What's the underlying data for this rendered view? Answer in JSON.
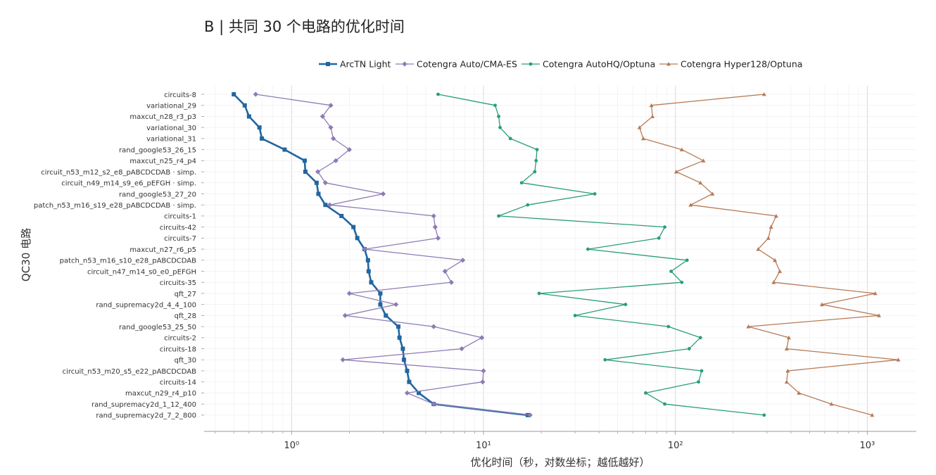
{
  "title": "B | 共同 30 个电路的优化时间",
  "chart_data": {
    "type": "line",
    "xlabel": "优化时间（秒，对数坐标；越低越好）",
    "ylabel": "QC30 电路",
    "x_scale": "log",
    "xlim": [
      0.35,
      1800
    ],
    "x_ticks": [
      1,
      10,
      100,
      1000
    ],
    "x_tick_labels": [
      "10⁰",
      "10¹",
      "10²",
      "10³"
    ],
    "grid": true,
    "legend_position": "top-center",
    "categories": [
      "circuits-8",
      "variational_29",
      "maxcut_n28_r3_p3",
      "variational_30",
      "variational_31",
      "rand_google53_26_15",
      "maxcut_n25_r4_p4",
      "circuit_n53_m12_s2_e8_pABCDCDAB · simp.",
      "circuit_n49_m14_s9_e6_pEFGH · simp.",
      "rand_google53_27_20",
      "patch_n53_m16_s19_e28_pABCDCDAB · simp.",
      "circuits-1",
      "circuits-42",
      "circuits-7",
      "maxcut_n27_r6_p5",
      "patch_n53_m16_s10_e28_pABCDCDAB",
      "circuit_n47_m14_s0_e0_pEFGH",
      "circuits-35",
      "qft_27",
      "rand_supremacy2d_4_4_100",
      "qft_28",
      "rand_google53_25_50",
      "circuits-2",
      "circuits-18",
      "qft_30",
      "circuit_n53_m20_s5_e22_pABCDCDAB",
      "circuits-14",
      "maxcut_n29_r4_p10",
      "rand_supremacy2d_1_12_400",
      "rand_supremacy2d_7_2_800"
    ],
    "series": [
      {
        "name": "ArcTN Light",
        "color": "#2166a0",
        "marker": "square",
        "values": [
          0.5,
          0.57,
          0.6,
          0.68,
          0.7,
          0.92,
          1.17,
          1.18,
          1.35,
          1.38,
          1.5,
          1.82,
          2.1,
          2.2,
          2.4,
          2.5,
          2.52,
          2.6,
          2.9,
          2.9,
          3.1,
          3.6,
          3.65,
          3.8,
          3.85,
          4.0,
          4.1,
          4.6,
          5.5,
          17.0
        ]
      },
      {
        "name": "Cotengra Auto/CMA-ES",
        "color": "#8e7bb5",
        "marker": "diamond",
        "values": [
          0.65,
          1.6,
          1.45,
          1.6,
          1.65,
          2.0,
          1.7,
          1.37,
          1.5,
          3.0,
          1.58,
          5.5,
          5.6,
          5.8,
          2.4,
          7.8,
          6.3,
          6.8,
          2.0,
          3.5,
          1.9,
          5.5,
          9.8,
          7.7,
          1.85,
          10.0,
          9.9,
          4.0,
          5.5,
          17.5
        ]
      },
      {
        "name": "Cotengra AutoHQ/Optuna",
        "color": "#2a9d7c",
        "marker": "circle",
        "values": [
          5.8,
          11.5,
          12.0,
          12.2,
          13.8,
          19.0,
          18.8,
          18.5,
          15.8,
          38.0,
          17.0,
          12.0,
          88.0,
          82.0,
          35.0,
          115.0,
          95.0,
          108.0,
          19.5,
          55.0,
          30.0,
          92.0,
          135.0,
          118.0,
          43.0,
          137.0,
          132.0,
          70.0,
          88.0,
          290.0
        ]
      },
      {
        "name": "Cotengra Hyper128/Optuna",
        "color": "#b87a56",
        "marker": "triangle",
        "values": [
          290.0,
          75.0,
          76.0,
          65.0,
          68.0,
          108.0,
          140.0,
          101.0,
          135.0,
          156.0,
          120.0,
          335.0,
          315.0,
          305.0,
          270.0,
          330.0,
          350.0,
          325.0,
          1100.0,
          580.0,
          1150.0,
          240.0,
          390.0,
          380.0,
          1450.0,
          385.0,
          380.0,
          440.0,
          650.0,
          1060.0
        ]
      }
    ]
  }
}
